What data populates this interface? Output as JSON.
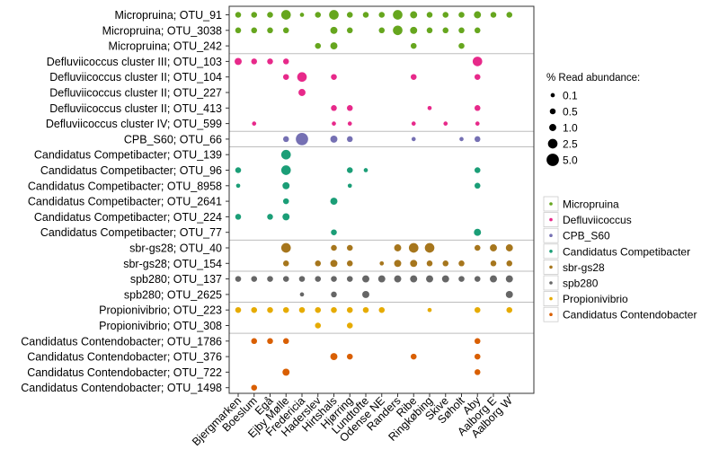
{
  "chart_data": {
    "type": "bubble-matrix",
    "title": "",
    "xlabel": "",
    "ylabel": "",
    "categories_x": [
      "Bjergmarken",
      "Boeslum",
      "Egå",
      "Ejby Mølle",
      "Fredericia",
      "Haderslev",
      "Hirtshals",
      "Hjørring",
      "Lundtofte",
      "Odense NE",
      "Randers",
      "Ribe",
      "Ringkøbing",
      "Skive",
      "Søholt",
      "Aby",
      "Aalborg E",
      "Aalborg W"
    ],
    "groups": [
      {
        "name": "Micropruina",
        "color": "#66a61e"
      },
      {
        "name": "Defluviicoccus",
        "color": "#e7298a"
      },
      {
        "name": "CPB_S60",
        "color": "#7570b3"
      },
      {
        "name": "Candidatus Competibacter",
        "color": "#1b9e77"
      },
      {
        "name": "sbr-gs28",
        "color": "#a6761d"
      },
      {
        "name": "spb280",
        "color": "#666666"
      },
      {
        "name": "Propionivibrio",
        "color": "#e6ab02"
      },
      {
        "name": "Candidatus Contendobacter",
        "color": "#d95f02"
      }
    ],
    "rows": [
      {
        "label": "Micropruina; OTU_91",
        "group": 0,
        "values": [
          0.5,
          0.5,
          0.5,
          2.5,
          0.1,
          0.5,
          2.5,
          0.5,
          0.5,
          0.5,
          2.5,
          1.0,
          0.5,
          0.5,
          0.5,
          1.0,
          0.5,
          0.5
        ]
      },
      {
        "label": "Micropruina; OTU_3038",
        "group": 0,
        "values": [
          0.5,
          0.5,
          0.5,
          0.5,
          0,
          0,
          1.0,
          0.5,
          0,
          0.5,
          2.5,
          1.0,
          0.5,
          0.5,
          0.5,
          0.5,
          0,
          0
        ]
      },
      {
        "label": "Micropruina; OTU_242",
        "group": 0,
        "values": [
          0,
          0,
          0,
          0,
          0,
          0.5,
          1.0,
          0,
          0,
          0,
          0,
          0.5,
          0,
          0,
          0.5,
          0,
          0,
          0
        ]
      },
      {
        "label": "Defluviicoccus cluster III; OTU_103",
        "group": 1,
        "values": [
          1.0,
          0.5,
          0.5,
          0.5,
          0,
          0,
          0,
          0,
          0,
          0,
          0,
          0,
          0,
          0,
          0,
          2.5,
          0,
          0
        ]
      },
      {
        "label": "Defluviicoccus cluster II; OTU_104",
        "group": 1,
        "values": [
          0,
          0,
          0,
          0.5,
          2.5,
          0,
          0.5,
          0,
          0,
          0,
          0,
          0.5,
          0,
          0,
          0,
          0.5,
          0,
          0
        ]
      },
      {
        "label": "Defluviicoccus cluster II; OTU_227",
        "group": 1,
        "values": [
          0,
          0,
          0,
          0,
          1.0,
          0,
          0,
          0,
          0,
          0,
          0,
          0,
          0,
          0,
          0,
          0,
          0,
          0
        ]
      },
      {
        "label": "Defluviicoccus cluster II; OTU_413",
        "group": 1,
        "values": [
          0,
          0,
          0,
          0,
          0,
          0,
          0.5,
          0.5,
          0,
          0,
          0,
          0,
          0.1,
          0,
          0,
          0.5,
          0,
          0
        ]
      },
      {
        "label": "Defluviicoccus cluster IV; OTU_599",
        "group": 1,
        "values": [
          0,
          0.1,
          0,
          0,
          0,
          0,
          0.1,
          0.1,
          0,
          0,
          0,
          0.1,
          0,
          0.1,
          0,
          0.1,
          0,
          0
        ]
      },
      {
        "label": "CPB_S60; OTU_66",
        "group": 2,
        "values": [
          0,
          0,
          0,
          0.5,
          5.0,
          0,
          1.0,
          0.5,
          0,
          0,
          0,
          0.1,
          0,
          0,
          0.1,
          0.5,
          0,
          0
        ]
      },
      {
        "label": "Candidatus Competibacter; OTU_139",
        "group": 3,
        "values": [
          0,
          0,
          0,
          2.5,
          0,
          0,
          0,
          0,
          0,
          0,
          0,
          0,
          0,
          0,
          0,
          0,
          0,
          0
        ]
      },
      {
        "label": "Candidatus Competibacter; OTU_96",
        "group": 3,
        "values": [
          0.5,
          0,
          0,
          2.5,
          0,
          0,
          0,
          0.5,
          0.1,
          0,
          0,
          0,
          0,
          0,
          0,
          0.5,
          0,
          0
        ]
      },
      {
        "label": "Candidatus Competibacter; OTU_8958",
        "group": 3,
        "values": [
          0.1,
          0,
          0,
          1.0,
          0,
          0,
          0,
          0.1,
          0,
          0,
          0,
          0,
          0,
          0,
          0,
          0.5,
          0,
          0
        ]
      },
      {
        "label": "Candidatus Competibacter; OTU_2641",
        "group": 3,
        "values": [
          0,
          0,
          0,
          0.5,
          0,
          0,
          1.0,
          0,
          0,
          0,
          0,
          0,
          0,
          0,
          0,
          0,
          0,
          0
        ]
      },
      {
        "label": "Candidatus Competibacter; OTU_224",
        "group": 3,
        "values": [
          0.5,
          0,
          0.5,
          1.0,
          0,
          0,
          0,
          0,
          0,
          0,
          0,
          0,
          0,
          0,
          0,
          0,
          0,
          0
        ]
      },
      {
        "label": "Candidatus Competibacter; OTU_77",
        "group": 3,
        "values": [
          0,
          0,
          0,
          0,
          0,
          0,
          0.5,
          0,
          0,
          0,
          0,
          0,
          0,
          0,
          0,
          1.0,
          0,
          0
        ]
      },
      {
        "label": "sbr-gs28; OTU_40",
        "group": 4,
        "values": [
          0,
          0,
          0,
          2.5,
          0,
          0,
          0.5,
          0.5,
          0,
          0,
          1.0,
          2.5,
          2.5,
          0,
          0,
          0.5,
          1.0,
          1.0
        ]
      },
      {
        "label": "sbr-gs28; OTU_154",
        "group": 4,
        "values": [
          0,
          0,
          0,
          0.5,
          0,
          0.5,
          1.0,
          0.5,
          0,
          0.1,
          1.0,
          1.0,
          0.5,
          0.5,
          0.5,
          0,
          0.5,
          0.5
        ]
      },
      {
        "label": "spb280; OTU_137",
        "group": 5,
        "values": [
          0.5,
          0.5,
          0.5,
          0.5,
          0.5,
          0.5,
          0.5,
          0.5,
          1.0,
          1.0,
          1.0,
          1.0,
          1.0,
          1.0,
          0.5,
          0.5,
          1.0,
          1.0
        ]
      },
      {
        "label": "spb280; OTU_2625",
        "group": 5,
        "values": [
          0,
          0,
          0,
          0,
          0.1,
          0,
          0.5,
          0,
          1.0,
          0,
          0,
          0,
          0,
          0,
          0,
          0,
          0,
          1.0
        ]
      },
      {
        "label": "Propionivibrio; OTU_223",
        "group": 6,
        "values": [
          0.5,
          0.5,
          0.5,
          0.5,
          0.5,
          0.5,
          0.5,
          0.5,
          0.5,
          0.5,
          0,
          0,
          0.1,
          0,
          0,
          0.5,
          0,
          0.5
        ]
      },
      {
        "label": "Propionivibrio; OTU_308",
        "group": 6,
        "values": [
          0,
          0,
          0,
          0,
          0,
          0.5,
          0,
          0.5,
          0,
          0,
          0,
          0,
          0,
          0,
          0,
          0,
          0,
          0
        ]
      },
      {
        "label": "Candidatus Contendobacter; OTU_1786",
        "group": 7,
        "values": [
          0,
          0.5,
          0.5,
          0.5,
          0,
          0,
          0,
          0,
          0,
          0,
          0,
          0,
          0,
          0,
          0,
          0.5,
          0,
          0
        ]
      },
      {
        "label": "Candidatus Contendobacter; OTU_376",
        "group": 7,
        "values": [
          0,
          0,
          0,
          0,
          0,
          0,
          1.0,
          0.5,
          0,
          0,
          0,
          0.5,
          0,
          0,
          0,
          0.5,
          0,
          0
        ]
      },
      {
        "label": "Candidatus Contendobacter; OTU_722",
        "group": 7,
        "values": [
          0,
          0,
          0,
          1.0,
          0,
          0,
          0,
          0,
          0,
          0,
          0,
          0,
          0,
          0,
          0,
          0.5,
          0,
          0
        ]
      },
      {
        "label": "Candidatus Contendobacter; OTU_1498",
        "group": 7,
        "values": [
          0,
          0.5,
          0,
          0,
          0,
          0,
          0,
          0,
          0,
          0,
          0,
          0,
          0,
          0,
          0,
          0,
          0,
          0
        ]
      }
    ],
    "size_legend": {
      "title": "% Read abundance:",
      "levels": [
        0.1,
        0.5,
        1.0,
        2.5,
        5.0
      ],
      "labels": [
        "0.1",
        "0.5",
        "1.0",
        "2.5",
        "5.0"
      ]
    },
    "color_legend_labels": [
      "Micropruina",
      "Defluviicoccus",
      "CPB_S60",
      "Candidatus Competibacter",
      "sbr-gs28",
      "spb280",
      "Propionivibrio",
      "Candidatus Contendobacter"
    ],
    "grid": false
  }
}
